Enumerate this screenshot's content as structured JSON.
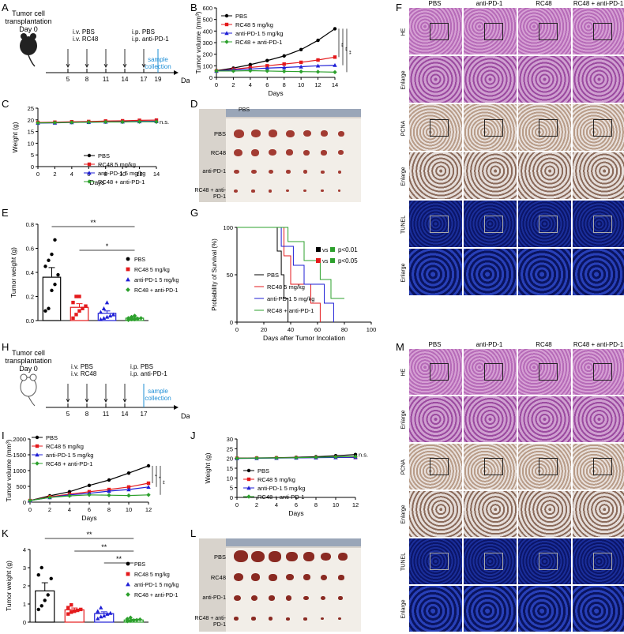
{
  "panels": {
    "A": {
      "letter": "A",
      "header_line1": "Tumor cell",
      "header_line2": "transplantation",
      "header_line3": "Day 0",
      "iv_1": "i.v. PBS",
      "iv_2": "i.v. RC48",
      "ip_1": "i.p. PBS",
      "ip_2": "i.p. anti-PD-1",
      "days": [
        "5",
        "8",
        "11",
        "14",
        "17",
        "19"
      ],
      "collect_1": "sample",
      "collect_2": "collection",
      "axis": "Days"
    },
    "H": {
      "letter": "H",
      "header_line1": "Tumor cell",
      "header_line2": "transplantation",
      "header_line3": "Day 0",
      "iv_1": "i.v. PBS",
      "iv_2": "i.v. RC48",
      "ip_1": "i.p. PBS",
      "ip_2": "i.p. anti-PD-1",
      "days": [
        "5",
        "8",
        "11",
        "14",
        "17"
      ],
      "collect_1": "sample",
      "collect_2": "collection",
      "axis": "Days"
    },
    "D": {
      "letter": "D",
      "top": "PBS",
      "rows": [
        "PBS",
        "RC48",
        "anti-PD-1",
        "RC48 + anti-PD-1"
      ]
    },
    "L": {
      "letter": "L",
      "rows": [
        "PBS",
        "RC48",
        "anti-PD-1",
        "RC48 + anti-PD-1"
      ]
    },
    "F": {
      "letter": "F",
      "cols": [
        "PBS",
        "anti-PD-1",
        "RC48",
        "RC48 + anti-PD-1"
      ],
      "rows": [
        "HE",
        "Enlarge",
        "PCNA",
        "Enlarge",
        "TUNEL",
        "Enlarge"
      ]
    },
    "M": {
      "letter": "M",
      "cols": [
        "PBS",
        "anti-PD-1",
        "RC48",
        "RC48 + anti-PD-1"
      ],
      "rows": [
        "HE",
        "Enlarge",
        "PCNA",
        "Enlarge",
        "TUNEL",
        "Enlarge"
      ]
    }
  },
  "legend": {
    "pbs": "PBS",
    "rc48": "RC48 5 mg/kg",
    "pd1": "anti-PD-1 5 mg/kg",
    "combo": "RC48 + anti-PD-1"
  },
  "colors": {
    "pbs": "#000000",
    "rc48": "#e41a1c",
    "pd1": "#1f1fd6",
    "combo": "#2ca02c"
  },
  "chart_data": [
    {
      "id": "B",
      "type": "line",
      "title": "",
      "xlabel": "Days",
      "ylabel": "Tumor volume (mm³)",
      "x": [
        0,
        2,
        4,
        6,
        8,
        10,
        12,
        14
      ],
      "xticks": [
        "0",
        "2",
        "4",
        "6",
        "8",
        "10",
        "12",
        "14"
      ],
      "yticks": [
        "0",
        "100",
        "200",
        "300",
        "400",
        "500",
        "600"
      ],
      "ylim": [
        0,
        600
      ],
      "series": [
        {
          "name": "PBS",
          "values": [
            58,
            80,
            110,
            145,
            185,
            240,
            320,
            420
          ]
        },
        {
          "name": "RC48 5 mg/kg",
          "values": [
            55,
            70,
            85,
            100,
            115,
            130,
            150,
            175
          ]
        },
        {
          "name": "anti-PD-1 5 mg/kg",
          "values": [
            55,
            65,
            72,
            80,
            85,
            92,
            100,
            105
          ]
        },
        {
          "name": "RC48 + anti-PD-1",
          "values": [
            55,
            55,
            58,
            55,
            52,
            50,
            48,
            45
          ]
        }
      ],
      "significance": [
        "**",
        "**",
        "**"
      ]
    },
    {
      "id": "C",
      "type": "line",
      "xlabel": "Days",
      "ylabel": "Weight (g)",
      "x": [
        0,
        2,
        4,
        6,
        8,
        10,
        12,
        14
      ],
      "xticks": [
        "0",
        "2",
        "4",
        "6",
        "8",
        "10",
        "12",
        "14"
      ],
      "yticks": [
        "0",
        "5",
        "10",
        "15",
        "20",
        "25"
      ],
      "ylim": [
        0,
        25
      ],
      "series": [
        {
          "name": "PBS",
          "values": [
            18.8,
            18.9,
            19.0,
            19.1,
            19.2,
            19.2,
            19.3,
            19.2
          ]
        },
        {
          "name": "RC48 5 mg/kg",
          "values": [
            18.9,
            19.0,
            19.2,
            19.3,
            19.5,
            19.6,
            19.8,
            19.9
          ]
        },
        {
          "name": "anti-PD-1 5 mg/kg",
          "values": [
            18.6,
            18.7,
            18.9,
            19.0,
            19.1,
            19.2,
            19.3,
            19.4
          ]
        },
        {
          "name": "RC48 + anti-PD-1",
          "values": [
            18.7,
            18.8,
            18.9,
            19.0,
            19.1,
            19.1,
            19.2,
            19.2
          ]
        }
      ],
      "annotation": "n.s."
    },
    {
      "id": "E",
      "type": "bar",
      "ylabel": "Tumor weight (g)",
      "yticks": [
        "0.0",
        "0.2",
        "0.4",
        "0.6",
        "0.8"
      ],
      "ylim": [
        0,
        0.8
      ],
      "categories": [
        "PBS",
        "RC48 5 mg/kg",
        "anti-PD-1 5 mg/kg",
        "RC48 + anti-PD-1"
      ],
      "values": [
        0.36,
        0.11,
        0.06,
        0.02
      ],
      "errors": [
        0.08,
        0.03,
        0.02,
        0.008
      ],
      "points": [
        [
          0.08,
          0.1,
          0.25,
          0.3,
          0.38,
          0.45,
          0.5,
          0.55,
          0.67
        ],
        [
          0.02,
          0.05,
          0.08,
          0.1,
          0.12,
          0.15,
          0.2,
          0.2
        ],
        [
          0.01,
          0.02,
          0.03,
          0.04,
          0.05,
          0.07,
          0.1,
          0.15
        ],
        [
          0.005,
          0.01,
          0.01,
          0.015,
          0.02,
          0.02,
          0.03,
          0.04
        ]
      ],
      "significance": [
        "**",
        "*"
      ]
    },
    {
      "id": "G",
      "type": "line",
      "xlabel": "Days after Tumor Incolation",
      "ylabel": "Probability of Survival (%)",
      "xticks": [
        "0",
        "20",
        "40",
        "60",
        "80",
        "100"
      ],
      "yticks": [
        "0",
        "50",
        "100"
      ],
      "xlim": [
        0,
        100
      ],
      "ylim": [
        0,
        100
      ],
      "series": [
        {
          "name": "PBS",
          "steps": [
            [
              0,
              100
            ],
            [
              30,
              100
            ],
            [
              30,
              75
            ],
            [
              33,
              75
            ],
            [
              33,
              50
            ],
            [
              35,
              50
            ],
            [
              35,
              25
            ],
            [
              38,
              25
            ],
            [
              38,
              0
            ]
          ]
        },
        {
          "name": "RC48 5 mg/kg",
          "steps": [
            [
              0,
              100
            ],
            [
              35,
              100
            ],
            [
              35,
              70
            ],
            [
              40,
              70
            ],
            [
              40,
              40
            ],
            [
              55,
              40
            ],
            [
              55,
              20
            ],
            [
              62,
              20
            ],
            [
              62,
              0
            ]
          ]
        },
        {
          "name": "anti-PD-1 5 mg/kg",
          "steps": [
            [
              0,
              100
            ],
            [
              33,
              100
            ],
            [
              33,
              80
            ],
            [
              42,
              80
            ],
            [
              42,
              60
            ],
            [
              50,
              60
            ],
            [
              50,
              40
            ],
            [
              65,
              40
            ],
            [
              65,
              20
            ],
            [
              72,
              20
            ],
            [
              72,
              0
            ]
          ]
        },
        {
          "name": "RC48 + anti-PD-1",
          "steps": [
            [
              0,
              100
            ],
            [
              38,
              100
            ],
            [
              38,
              85
            ],
            [
              50,
              85
            ],
            [
              50,
              65
            ],
            [
              62,
              65
            ],
            [
              62,
              45
            ],
            [
              70,
              45
            ],
            [
              70,
              25
            ],
            [
              80,
              25
            ]
          ]
        }
      ],
      "stats": [
        {
          "text": "vs",
          "p": "p<0.01",
          "c1": "#000000",
          "c2": "#2ca02c"
        },
        {
          "text": "vs",
          "p": "p<0.05",
          "c1": "#e41a1c",
          "c2": "#2ca02c"
        }
      ]
    },
    {
      "id": "I",
      "type": "line",
      "xlabel": "Days",
      "ylabel": "Tumor volume (mm³)",
      "x": [
        0,
        2,
        4,
        6,
        8,
        10,
        12
      ],
      "xticks": [
        "0",
        "2",
        "4",
        "6",
        "8",
        "10",
        "12"
      ],
      "yticks": [
        "0",
        "500",
        "1000",
        "1500",
        "2000"
      ],
      "ylim": [
        0,
        2000
      ],
      "series": [
        {
          "name": "PBS",
          "values": [
            50,
            200,
            330,
            530,
            700,
            920,
            1150
          ]
        },
        {
          "name": "RC48 5 mg/kg",
          "values": [
            50,
            170,
            250,
            330,
            400,
            480,
            600
          ]
        },
        {
          "name": "anti-PD-1 5 mg/kg",
          "values": [
            50,
            150,
            230,
            280,
            350,
            400,
            480
          ]
        },
        {
          "name": "RC48 + anti-PD-1",
          "values": [
            50,
            150,
            200,
            230,
            220,
            210,
            230
          ]
        }
      ],
      "significance": [
        "*",
        "*",
        "**"
      ]
    },
    {
      "id": "J",
      "type": "line",
      "xlabel": "Days",
      "ylabel": "Weight (g)",
      "x": [
        0,
        2,
        4,
        6,
        8,
        10,
        12
      ],
      "xticks": [
        "0",
        "2",
        "4",
        "6",
        "8",
        "10",
        "12"
      ],
      "yticks": [
        "0",
        "5",
        "10",
        "15",
        "20",
        "25",
        "30"
      ],
      "ylim": [
        0,
        30
      ],
      "series": [
        {
          "name": "PBS",
          "values": [
            20.2,
            20.3,
            20.4,
            20.6,
            20.9,
            21.4,
            22.0
          ]
        },
        {
          "name": "RC48 5 mg/kg",
          "values": [
            20.1,
            20.2,
            20.3,
            20.4,
            20.5,
            20.6,
            20.5
          ]
        },
        {
          "name": "anti-PD-1 5 mg/kg",
          "values": [
            20.0,
            20.1,
            20.2,
            20.3,
            20.4,
            20.5,
            20.6
          ]
        },
        {
          "name": "RC48 + anti-PD-1",
          "values": [
            20.1,
            20.2,
            20.3,
            20.4,
            20.6,
            20.8,
            21.0
          ]
        }
      ],
      "annotation": "n.s."
    },
    {
      "id": "K",
      "type": "bar",
      "ylabel": "Tumor weight (g)",
      "yticks": [
        "0",
        "1",
        "2",
        "3",
        "4"
      ],
      "ylim": [
        0,
        4
      ],
      "categories": [
        "PBS",
        "RC48 5 mg/kg",
        "anti-PD-1 5 mg/kg",
        "RC48 + anti-PD-1"
      ],
      "values": [
        1.72,
        0.68,
        0.47,
        0.12
      ],
      "errors": [
        0.45,
        0.1,
        0.1,
        0.04
      ],
      "points": [
        [
          0.7,
          0.9,
          1.2,
          1.5,
          2.4,
          2.6,
          3.0
        ],
        [
          0.45,
          0.55,
          0.6,
          0.65,
          0.7,
          0.8,
          0.95
        ],
        [
          0.2,
          0.3,
          0.35,
          0.45,
          0.5,
          0.6,
          0.8
        ],
        [
          0.05,
          0.08,
          0.1,
          0.12,
          0.15,
          0.18,
          0.25
        ]
      ],
      "significance": [
        "**",
        "**",
        "**"
      ]
    }
  ]
}
